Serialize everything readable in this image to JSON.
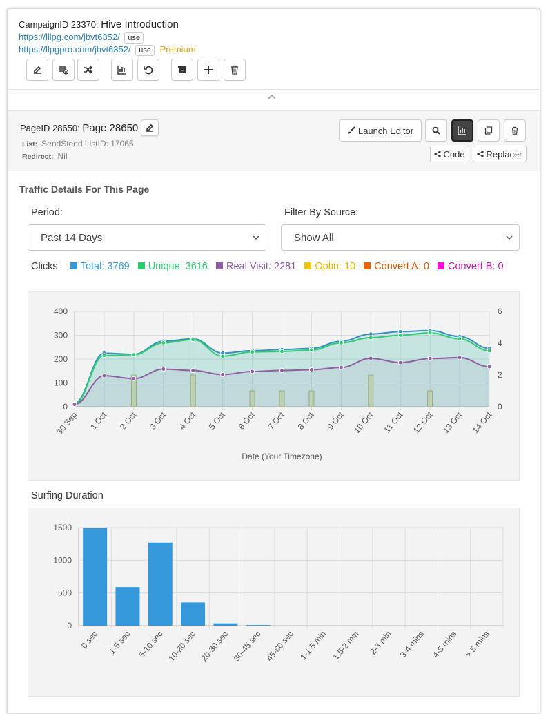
{
  "campaign": {
    "id_label": "CampaignID 23370:",
    "name": "Hive Introduction",
    "url1": "https://lllpg.com/jbvt6352/",
    "url2": "https://llpgpro.com/jbvt6352/",
    "use_label": "use",
    "premium_label": "Premium"
  },
  "toolbar": {
    "icons": [
      "edit-icon",
      "add-list-icon",
      "shuffle-icon",
      "stats-icon",
      "undo-icon",
      "archive-icon",
      "plus-icon",
      "trash-icon"
    ]
  },
  "page": {
    "id_label": "PageID 28650:",
    "name": "Page 28650",
    "list_label": "List:",
    "list_value": "SendSteed ListID: 17065",
    "redirect_label": "Redirect:",
    "redirect_value": "Nil",
    "launch_editor": "Launch Editor",
    "code_label": "Code",
    "replacer_label": "Replacer"
  },
  "traffic": {
    "heading": "Traffic Details For This Page",
    "period_label": "Period:",
    "period_value": "Past 14 Days",
    "source_label": "Filter By Source:",
    "source_value": "Show All",
    "clicks_label": "Clicks",
    "legend": [
      {
        "text": "Total: 3769",
        "color": "#3498db"
      },
      {
        "text": "Unique: 3616",
        "color": "#2ecc71"
      },
      {
        "text": "Real Visit: 2281",
        "color": "#8e5ea2"
      },
      {
        "text": "Optin: 10",
        "color": "#f1c40f"
      },
      {
        "text": "Convert A: 0",
        "color": "#e67e22"
      },
      {
        "text": "Convert B: 0",
        "color": "#e91ec8"
      }
    ]
  },
  "chart_data": [
    {
      "type": "line",
      "xlabel": "Date (Your Timezone)",
      "categories": [
        "30 Sep",
        "1 Oct",
        "2 Oct",
        "3 Oct",
        "4 Oct",
        "5 Oct",
        "6 Oct",
        "7 Oct",
        "8 Oct",
        "9 Oct",
        "10 Oct",
        "11 Oct",
        "12 Oct",
        "13 Oct",
        "14 Oct"
      ],
      "ylim": [
        0,
        400
      ],
      "yticks": [
        0,
        100,
        200,
        300,
        400
      ],
      "y2lim": [
        0,
        6
      ],
      "y2ticks": [
        0,
        2,
        4,
        6
      ],
      "grid": true,
      "series": [
        {
          "name": "Total",
          "color": "#3a8fbf",
          "values": [
            15,
            225,
            220,
            275,
            285,
            225,
            235,
            240,
            245,
            275,
            305,
            315,
            320,
            295,
            245
          ]
        },
        {
          "name": "Unique",
          "color": "#2ecc71",
          "values": [
            12,
            215,
            218,
            268,
            282,
            212,
            230,
            232,
            238,
            268,
            290,
            300,
            310,
            285,
            235
          ]
        },
        {
          "name": "Real Visit",
          "color": "#8e5ea2",
          "values": [
            10,
            130,
            118,
            158,
            152,
            135,
            148,
            152,
            155,
            165,
            203,
            185,
            202,
            206,
            168
          ]
        },
        {
          "name": "Optin",
          "color": "#d8cf8a",
          "axis": "right",
          "type": "bar",
          "values": [
            0,
            0,
            2,
            0,
            2,
            0,
            1,
            1,
            1,
            0,
            2,
            0,
            1,
            0,
            0
          ]
        }
      ]
    },
    {
      "type": "bar",
      "title": "Surfing Duration",
      "categories": [
        "0 sec",
        "1-5 sec",
        "5-10 sec",
        "10-20 sec",
        "20-30 sec",
        "30-45 sec",
        "45-60 sec",
        "1-1.5 min",
        "1.5-2 min",
        "2-3 min",
        "3-4 mins",
        "4-5 mins",
        "> 5 mins"
      ],
      "values": [
        1490,
        590,
        1270,
        355,
        35,
        10,
        0,
        0,
        0,
        0,
        0,
        0,
        0
      ],
      "ylim": [
        0,
        1500
      ],
      "yticks": [
        0,
        500,
        1000,
        1500
      ],
      "color": "#3498db",
      "grid": true
    }
  ]
}
